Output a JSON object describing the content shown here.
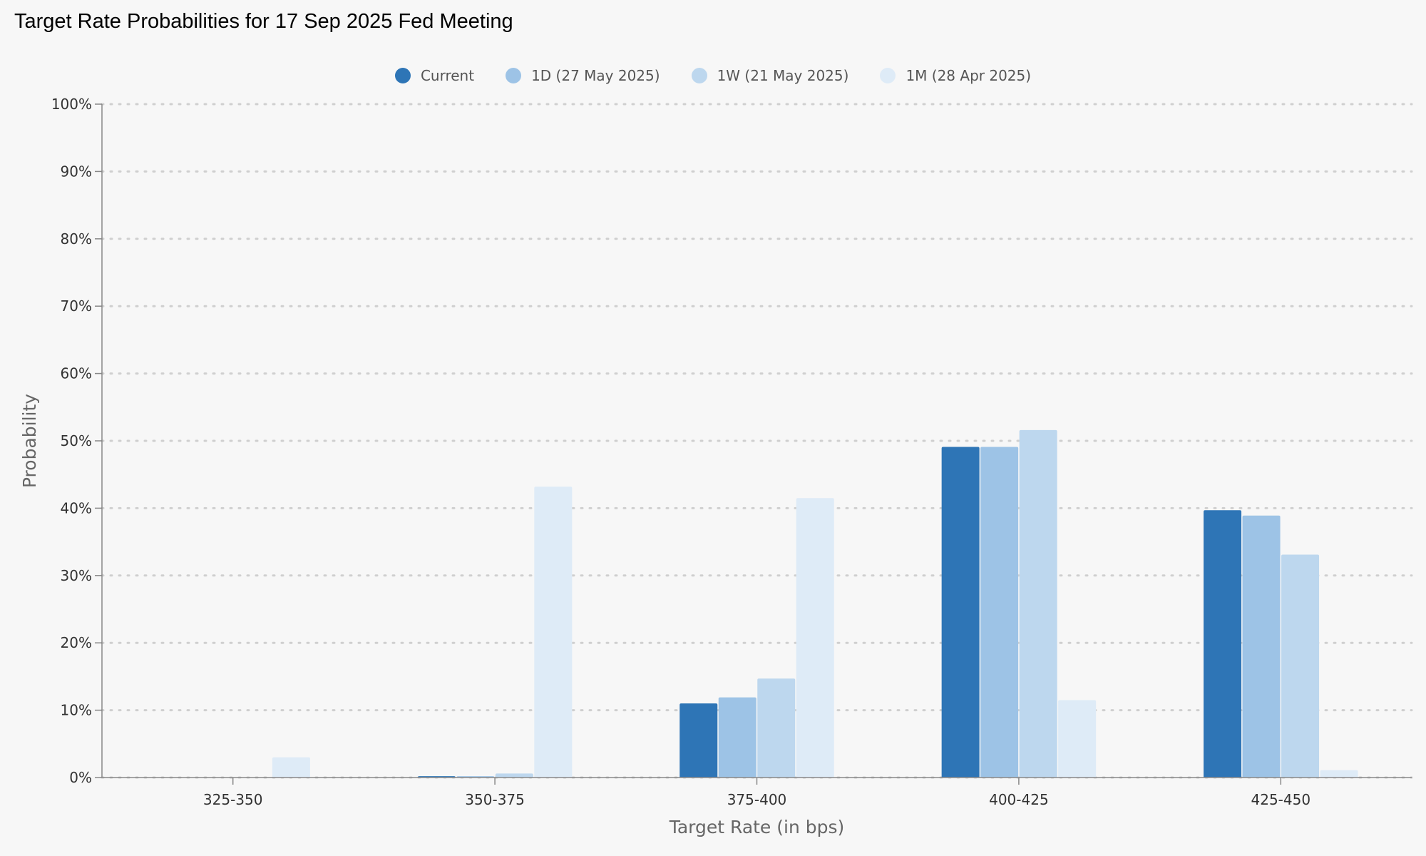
{
  "chart_data": {
    "type": "bar",
    "title": "Target Rate Probabilities for 17 Sep 2025 Fed Meeting",
    "xlabel": "Target Rate (in bps)",
    "ylabel": "Probability",
    "categories": [
      "325-350",
      "350-375",
      "375-400",
      "400-425",
      "425-450"
    ],
    "ylim": [
      0,
      100
    ],
    "yticks": [
      "0%",
      "10%",
      "20%",
      "30%",
      "40%",
      "50%",
      "60%",
      "70%",
      "80%",
      "90%",
      "100%"
    ],
    "grid": true,
    "legend_position": "top-center",
    "series": [
      {
        "name": "Current",
        "color": "#2e75b6",
        "values": [
          0,
          0.2,
          11.0,
          49.1,
          39.7
        ]
      },
      {
        "name": "1D (27 May 2025)",
        "color": "#9dc3e6",
        "values": [
          0,
          0.2,
          11.9,
          49.1,
          38.9
        ]
      },
      {
        "name": "1W (21 May 2025)",
        "color": "#bdd7ee",
        "values": [
          0,
          0.6,
          14.7,
          51.6,
          33.1
        ]
      },
      {
        "name": "1M (28 Apr 2025)",
        "color": "#deebf7",
        "values": [
          3.0,
          43.2,
          41.5,
          11.5,
          1.1
        ]
      }
    ]
  }
}
